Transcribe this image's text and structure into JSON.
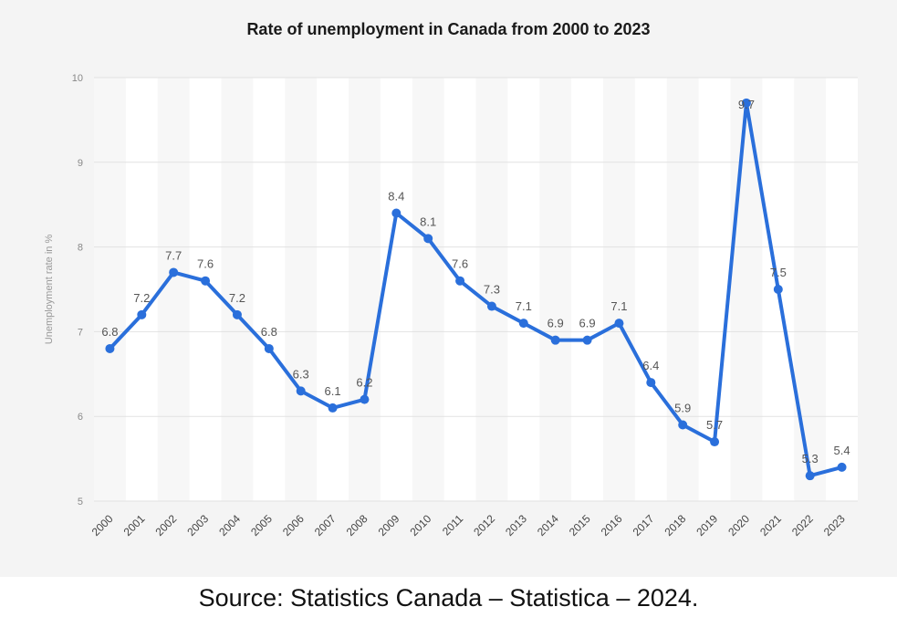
{
  "chart_data": {
    "type": "line",
    "title": "Rate of unemployment in Canada from 2000 to 2023",
    "xlabel": "",
    "ylabel": "Unemployment rate in %",
    "categories": [
      "2000",
      "2001",
      "2002",
      "2003",
      "2004",
      "2005",
      "2006",
      "2007",
      "2008",
      "2009",
      "2010",
      "2011",
      "2012",
      "2013",
      "2014",
      "2015",
      "2016",
      "2017",
      "2018",
      "2019",
      "2020",
      "2021",
      "2022",
      "2023"
    ],
    "series": [
      {
        "values": [
          6.8,
          7.2,
          7.7,
          7.6,
          7.2,
          6.8,
          6.3,
          6.1,
          6.2,
          8.4,
          8.1,
          7.6,
          7.3,
          7.1,
          6.9,
          6.9,
          7.1,
          6.4,
          5.9,
          5.7,
          9.7,
          7.5,
          5.3,
          5.4
        ],
        "color": "#2a6fdb"
      }
    ],
    "data_labels": [
      "6.8",
      "7.2",
      "7.7",
      "7.6",
      "7.2",
      "6.8",
      "6.3",
      "6.1",
      "6.2",
      "8.4",
      "8.1",
      "7.6",
      "7.3",
      "7.1",
      "6.9",
      "6.9",
      "7.1",
      "6.4",
      "5.9",
      "5.7",
      "9.7",
      "7.5",
      "5.3",
      "5.4"
    ],
    "ylim": [
      5,
      10
    ],
    "yticks": [
      "5",
      "6",
      "7",
      "8",
      "9",
      "10"
    ],
    "grid": true,
    "legend": "none"
  },
  "source_text": "Source:  Statistics Canada – Statistica – 2024."
}
